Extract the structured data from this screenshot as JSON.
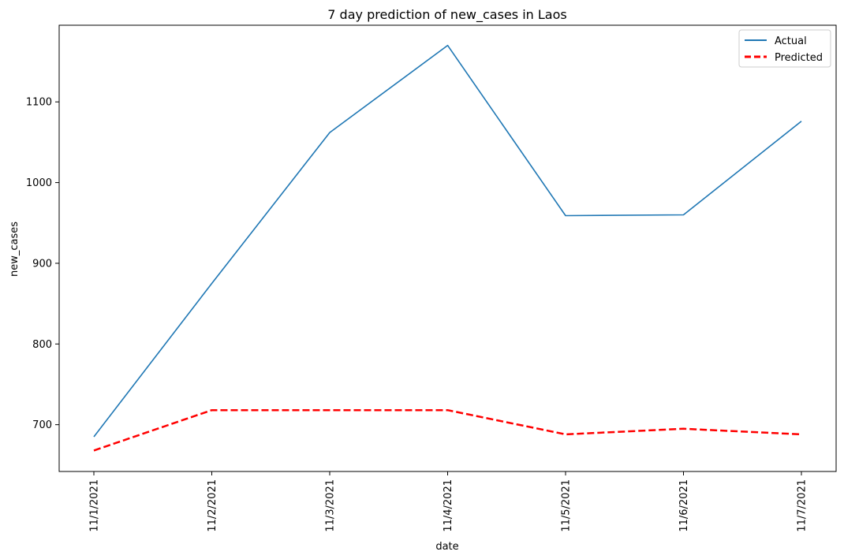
{
  "chart_data": {
    "type": "line",
    "title": "7 day prediction of new_cases in Laos",
    "xlabel": "date",
    "ylabel": "new_cases",
    "categories": [
      "11/1/2021",
      "11/2/2021",
      "11/3/2021",
      "11/4/2021",
      "11/5/2021",
      "11/6/2021",
      "11/7/2021"
    ],
    "series": [
      {
        "name": "Actual",
        "values": [
          685,
          875,
          1062,
          1170,
          959,
          960,
          1076
        ],
        "color": "#1f77b4",
        "style": "solid"
      },
      {
        "name": "Predicted",
        "values": [
          668,
          718,
          718,
          718,
          688,
          695,
          688
        ],
        "color": "#ff0000",
        "style": "dashed"
      }
    ],
    "ylim": [
      642,
      1195
    ],
    "yticks": [
      700,
      800,
      900,
      1000,
      1100
    ],
    "grid": false,
    "legend_position": "top-right"
  }
}
